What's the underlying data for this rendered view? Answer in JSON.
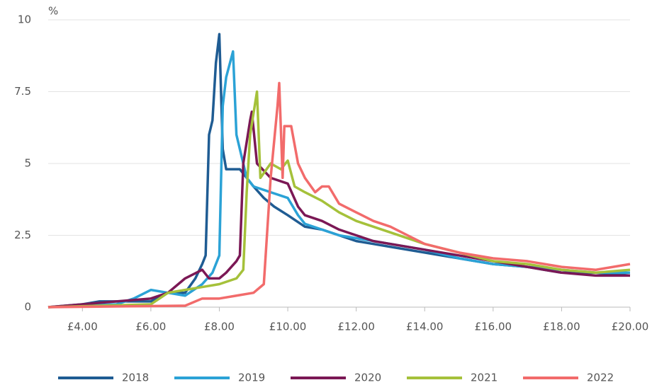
{
  "chart_data": {
    "type": "line",
    "y_label": "%",
    "xlim": [
      3,
      20
    ],
    "xticks": [
      {
        "value": 4,
        "label": "£4.00"
      },
      {
        "value": 6,
        "label": "£6.00"
      },
      {
        "value": 8,
        "label": "£8.00"
      },
      {
        "value": 10,
        "label": "£10.00"
      },
      {
        "value": 12,
        "label": "£12.00"
      },
      {
        "value": 14,
        "label": "£14.00"
      },
      {
        "value": 16,
        "label": "£16.00"
      },
      {
        "value": 18,
        "label": "£18.00"
      },
      {
        "value": 20,
        "label": "£20.00"
      }
    ],
    "ylim": [
      0,
      10
    ],
    "yticks": [
      0,
      2.5,
      5,
      7.5,
      10
    ],
    "grid": true,
    "legend": "bottom",
    "series": [
      {
        "name": "2018",
        "color": "#1f5c93",
        "x": [
          3,
          4,
          4.5,
          6,
          6.5,
          7,
          7.3,
          7.5,
          7.6,
          7.7,
          7.8,
          7.9,
          8.0,
          8.1,
          8.2,
          8.6,
          8.8,
          9,
          9.3,
          9.6,
          10,
          10.5,
          11,
          11.5,
          12,
          12.5,
          13,
          14,
          15,
          16,
          17,
          18,
          19,
          20
        ],
        "values": [
          0,
          0.1,
          0.2,
          0.2,
          0.5,
          0.5,
          1.0,
          1.5,
          1.8,
          6.0,
          6.5,
          8.5,
          9.5,
          5.5,
          4.8,
          4.8,
          4.5,
          4.2,
          3.8,
          3.5,
          3.2,
          2.8,
          2.7,
          2.5,
          2.3,
          2.2,
          2.1,
          1.9,
          1.7,
          1.5,
          1.4,
          1.2,
          1.2,
          1.1
        ]
      },
      {
        "name": "2019",
        "color": "#2ba2d6",
        "x": [
          3,
          5,
          5.5,
          6,
          6.5,
          7,
          7.5,
          7.8,
          8.0,
          8.1,
          8.2,
          8.4,
          8.5,
          8.6,
          8.8,
          9,
          9.5,
          10,
          10.3,
          10.5,
          11,
          11.5,
          12,
          12.5,
          13,
          14,
          15,
          16,
          17,
          18,
          19,
          20
        ],
        "values": [
          0,
          0.1,
          0.3,
          0.6,
          0.5,
          0.4,
          0.8,
          1.2,
          1.8,
          7.0,
          8.0,
          8.9,
          6.0,
          5.5,
          4.5,
          4.2,
          4.0,
          3.8,
          3.2,
          2.9,
          2.7,
          2.5,
          2.4,
          2.3,
          2.2,
          2.0,
          1.7,
          1.5,
          1.4,
          1.3,
          1.2,
          1.2
        ]
      },
      {
        "name": "2020",
        "color": "#7b1855",
        "x": [
          3,
          4,
          5,
          6,
          6.5,
          7,
          7.5,
          7.7,
          8,
          8.2,
          8.5,
          8.6,
          8.7,
          8.9,
          8.95,
          9.1,
          9.5,
          10,
          10.3,
          10.5,
          11,
          11.5,
          12,
          12.5,
          13,
          14,
          15,
          16,
          17,
          18,
          19,
          20
        ],
        "values": [
          0,
          0.1,
          0.2,
          0.3,
          0.5,
          1.0,
          1.3,
          1.0,
          1.0,
          1.2,
          1.6,
          1.8,
          5.0,
          6.5,
          6.8,
          5.0,
          4.5,
          4.3,
          3.5,
          3.2,
          3.0,
          2.7,
          2.5,
          2.3,
          2.2,
          2.0,
          1.8,
          1.6,
          1.4,
          1.2,
          1.1,
          1.1
        ]
      },
      {
        "name": "2021",
        "color": "#a5c13a",
        "x": [
          3,
          6,
          6.5,
          7,
          7.5,
          8,
          8.5,
          8.7,
          8.8,
          8.9,
          9.1,
          9.2,
          9.5,
          9.8,
          10,
          10.2,
          10.5,
          11,
          11.5,
          12,
          12.5,
          13,
          14,
          15,
          16,
          17,
          18,
          19,
          20
        ],
        "values": [
          0,
          0.1,
          0.5,
          0.6,
          0.7,
          0.8,
          1.0,
          1.3,
          4.0,
          6.0,
          7.5,
          4.5,
          5.0,
          4.8,
          5.1,
          4.2,
          4.0,
          3.7,
          3.3,
          3.0,
          2.8,
          2.6,
          2.2,
          1.9,
          1.6,
          1.5,
          1.3,
          1.2,
          1.3
        ]
      },
      {
        "name": "2022",
        "color": "#f26b6b",
        "x": [
          3,
          7,
          7.5,
          8,
          8.5,
          9,
          9.3,
          9.5,
          9.7,
          9.75,
          9.85,
          9.9,
          10.1,
          10.3,
          10.5,
          10.8,
          11,
          11.2,
          11.5,
          12,
          12.5,
          13,
          13.5,
          14,
          15,
          16,
          17,
          18,
          19,
          20
        ],
        "values": [
          0,
          0.05,
          0.3,
          0.3,
          0.4,
          0.5,
          0.8,
          4.5,
          7.0,
          7.8,
          4.5,
          6.3,
          6.3,
          5.0,
          4.5,
          4.0,
          4.2,
          4.2,
          3.6,
          3.3,
          3.0,
          2.8,
          2.5,
          2.2,
          1.9,
          1.7,
          1.6,
          1.4,
          1.3,
          1.5
        ]
      }
    ]
  }
}
